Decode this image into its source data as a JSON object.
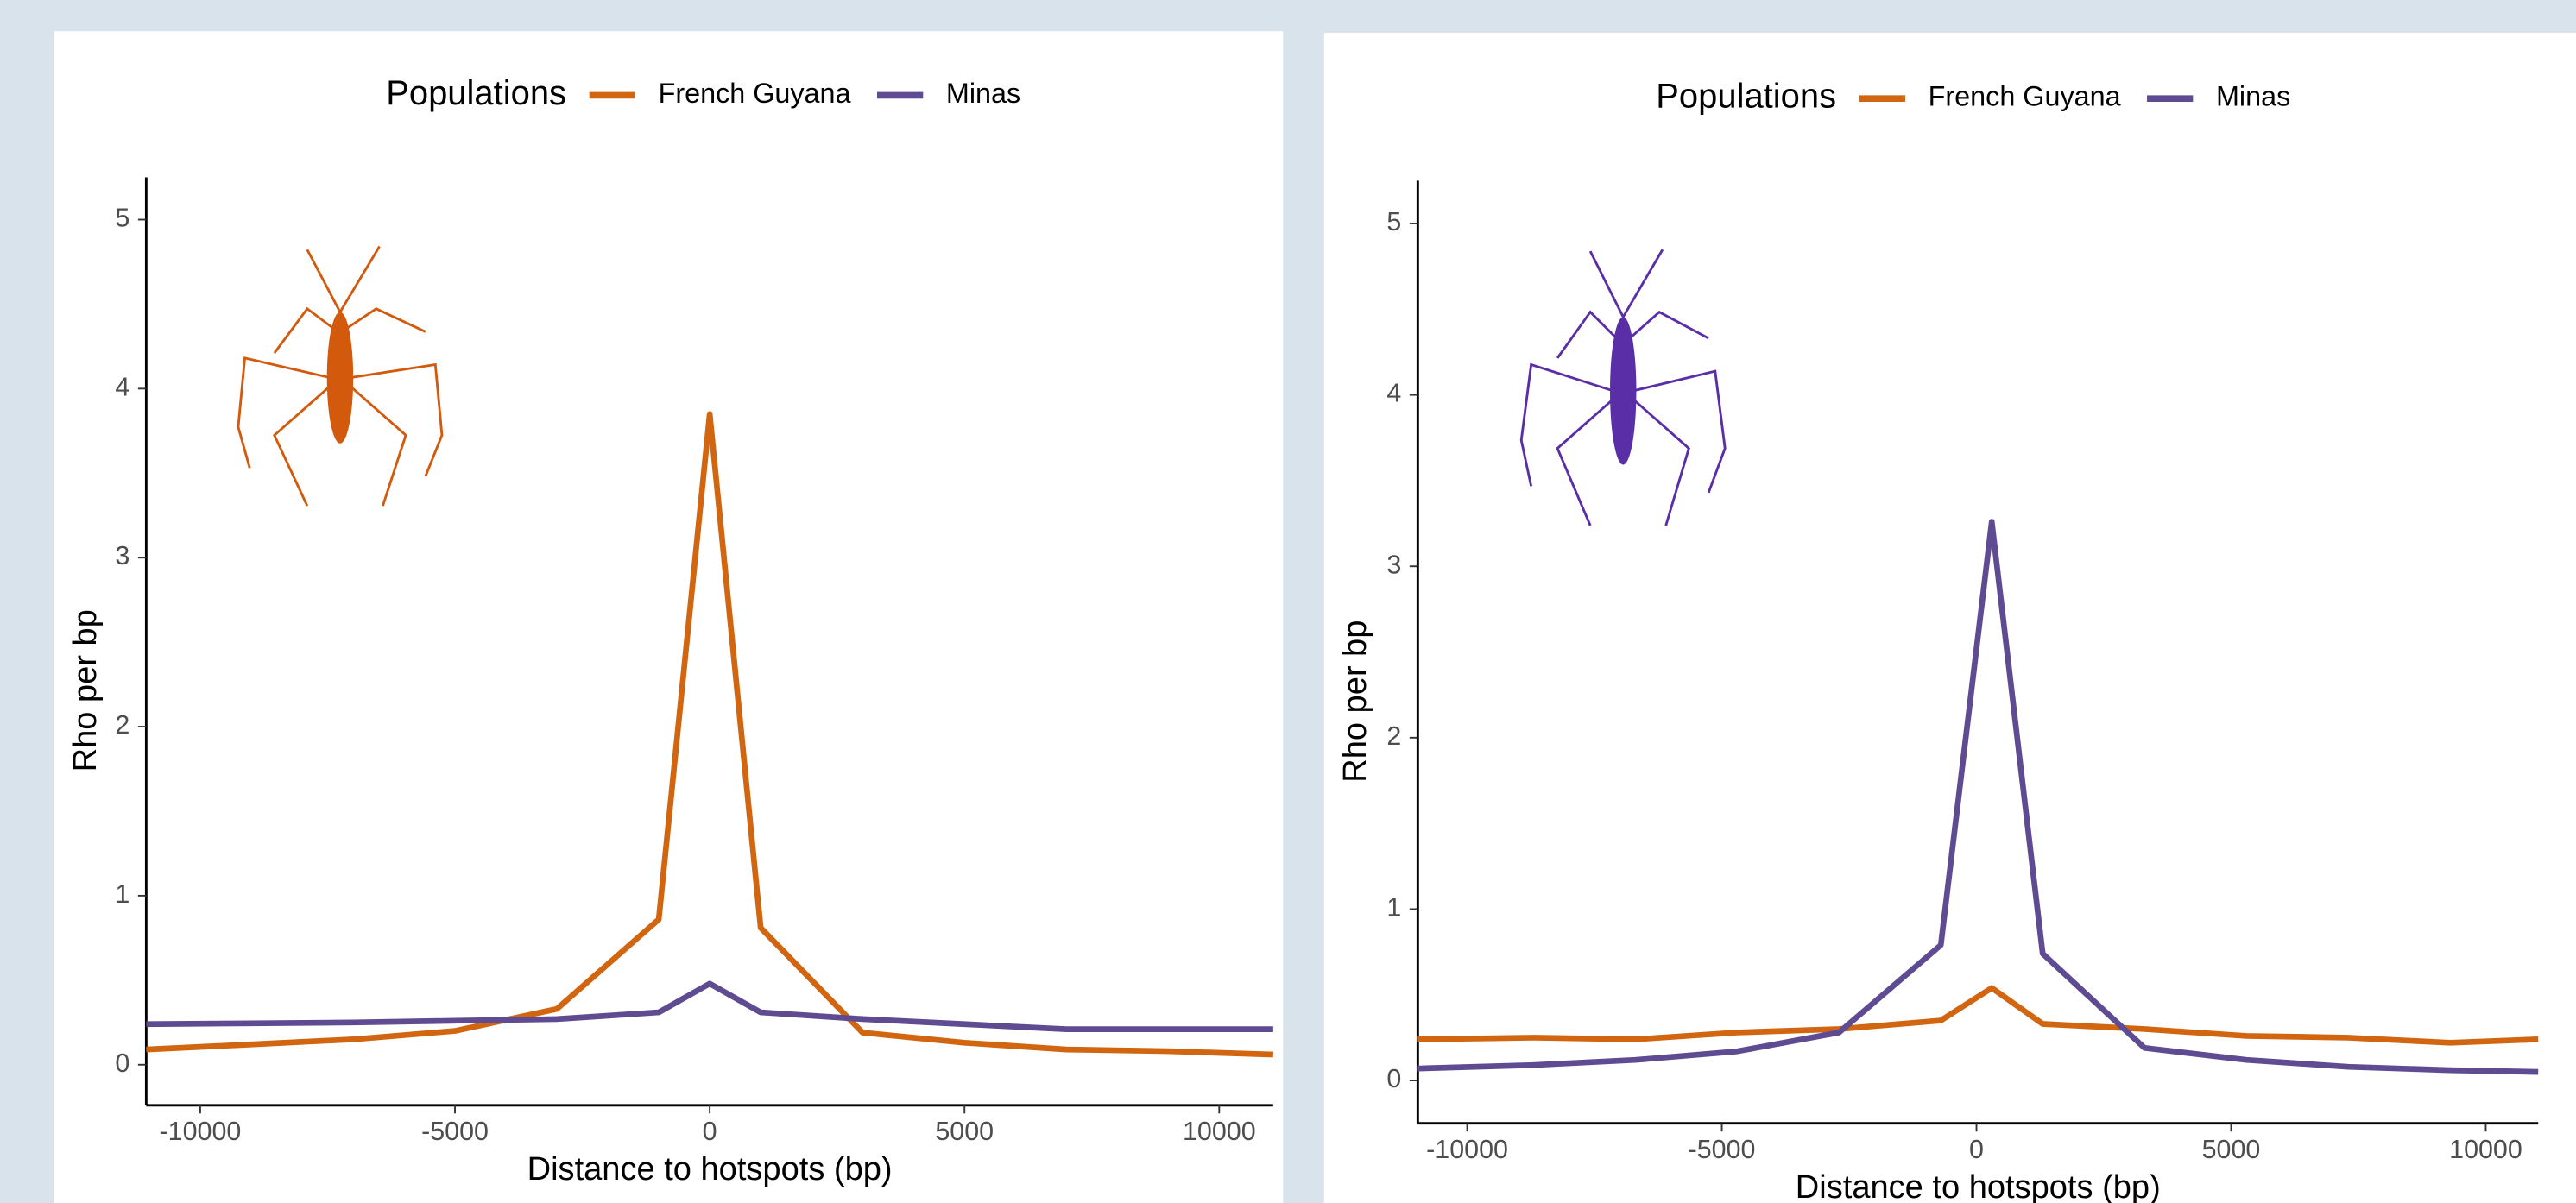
{
  "chart_data": [
    {
      "type": "line",
      "legend_title": "Populations",
      "x_label": "Distance to hotspots (bp)",
      "y_label": "Rho per bp",
      "x": [
        -11060,
        -9000,
        -7000,
        -5000,
        -3000,
        -1000,
        0,
        1000,
        3000,
        5000,
        7000,
        9000,
        11060
      ],
      "series": [
        {
          "name": "French Guyana",
          "color": "#d16510",
          "values": [
            0.09,
            0.12,
            0.15,
            0.2,
            0.33,
            0.86,
            3.85,
            0.81,
            0.19,
            0.13,
            0.09,
            0.08,
            0.06
          ]
        },
        {
          "name": "Minas",
          "color": "#5e4b92",
          "values": [
            0.24,
            0.245,
            0.25,
            0.26,
            0.27,
            0.31,
            0.48,
            0.31,
            0.27,
            0.24,
            0.21,
            0.21,
            0.21
          ]
        }
      ],
      "xlim": [
        -11060,
        11060
      ],
      "ylim": [
        -0.24,
        5.25
      ],
      "xticks": [
        -10000,
        -5000,
        0,
        5000,
        10000
      ],
      "yticks": [
        0,
        1,
        2,
        3,
        4,
        5
      ]
    },
    {
      "type": "line",
      "legend_title": "Populations",
      "x_label": "Distance to hotspots (bp)",
      "y_label": "Rho per bp",
      "x": [
        -10970,
        -8700,
        -6700,
        -4700,
        -2700,
        -700,
        300,
        1300,
        3300,
        5300,
        7300,
        9300,
        11030
      ],
      "series": [
        {
          "name": "French Guyana",
          "color": "#d16510",
          "values": [
            0.24,
            0.25,
            0.24,
            0.28,
            0.3,
            0.35,
            0.54,
            0.33,
            0.3,
            0.26,
            0.25,
            0.22,
            0.24
          ]
        },
        {
          "name": "Minas",
          "color": "#5e4b92",
          "values": [
            0.07,
            0.09,
            0.12,
            0.17,
            0.28,
            0.79,
            3.26,
            0.74,
            0.19,
            0.12,
            0.08,
            0.06,
            0.05
          ]
        }
      ],
      "xlim": [
        -10970,
        11030
      ],
      "ylim": [
        -0.25,
        5.25
      ],
      "xticks": [
        -10000,
        -5000,
        0,
        5000,
        10000
      ],
      "yticks": [
        0,
        1,
        2,
        3,
        4,
        5
      ]
    }
  ]
}
